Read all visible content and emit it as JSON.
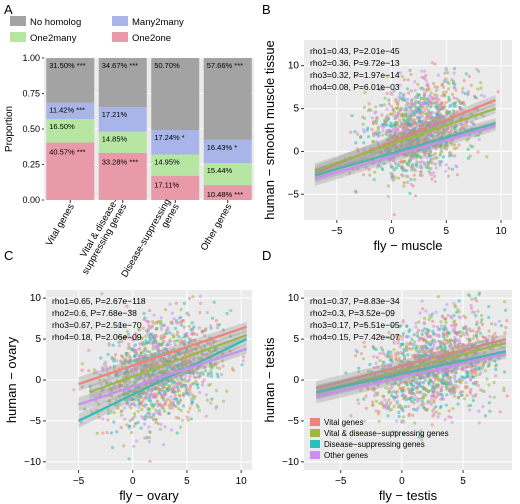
{
  "panel_letters": {
    "A": "A",
    "B": "B",
    "C": "C",
    "D": "D"
  },
  "colors": {
    "no_homolog": "#a3a3a3",
    "many2many": "#a9b4e8",
    "one2many": "#b6e6a2",
    "one2one": "#e89aa8",
    "vital": "#f0827a",
    "vital_disease": "#9db843",
    "disease": "#2bbfb5",
    "other": "#c98ff2",
    "panel_bg": "#ebebeb",
    "grid": "#ffffff"
  },
  "chart_data": [
    {
      "type": "bar",
      "panel": "A",
      "ylabel": "Proportion",
      "ylim": [
        0,
        1
      ],
      "yticks": [
        "0.00",
        "0.25",
        "0.50",
        "0.75",
        "1.00"
      ],
      "categories": [
        "Vital genes",
        "Vital & disease-\nsuppressing genes",
        "Disease-suppressing\ngenes",
        "Other genes"
      ],
      "legend": [
        "No homolog",
        "Many2many",
        "One2many",
        "One2one"
      ],
      "series": [
        {
          "name": "One2one",
          "values": [
            40.57,
            33.28,
            17.11,
            10.48
          ],
          "labels": [
            "40.57% ***",
            "33.28% ***",
            "17.11%",
            "10.48% ***"
          ]
        },
        {
          "name": "One2many",
          "values": [
            16.5,
            14.85,
            14.95,
            15.44
          ],
          "labels": [
            "16.50%",
            "14.85%",
            "14.95%",
            "15.44%"
          ]
        },
        {
          "name": "Many2many",
          "values": [
            11.42,
            17.21,
            17.24,
            16.43
          ],
          "labels": [
            "11.42% ***",
            "17.21%",
            "17.24% *",
            "16.43% *"
          ]
        },
        {
          "name": "No homolog",
          "values": [
            31.5,
            34.67,
            50.7,
            57.66
          ],
          "labels": [
            "31.50% ***",
            "34.67% ***",
            "50.70%",
            "57.66% ***"
          ]
        }
      ]
    },
    {
      "type": "scatter",
      "panel": "B",
      "xlabel": "fly − muscle",
      "ylabel": "human − smooth muscle tissue",
      "xlim": [
        -8,
        11
      ],
      "ylim": [
        -8,
        13
      ],
      "xticks": [
        -5,
        0,
        5,
        10
      ],
      "yticks": [
        -5,
        0,
        5,
        10
      ],
      "annotations": [
        "rho1=0.43, P=2.01e−45",
        "rho2=0.36, P=9.72e−13",
        "rho3=0.32, P=1.97e−14",
        "rho4=0.08, P=6.01e−03"
      ],
      "fits": [
        {
          "name": "Vital genes",
          "x": [
            -7,
            9.5
          ],
          "y": [
            -2.5,
            6.0
          ]
        },
        {
          "name": "Vital & disease-suppressing genes",
          "x": [
            -7,
            9.5
          ],
          "y": [
            -2.2,
            5.0
          ]
        },
        {
          "name": "Disease-suppressing genes",
          "x": [
            -7,
            9.5
          ],
          "y": [
            -2.8,
            3.3
          ]
        },
        {
          "name": "Other genes",
          "x": [
            -7,
            9.5
          ],
          "y": [
            -3.2,
            3.0
          ]
        }
      ]
    },
    {
      "type": "scatter",
      "panel": "C",
      "xlabel": "fly − ovary",
      "ylabel": "human − ovary",
      "xlim": [
        -8,
        11
      ],
      "ylim": [
        -11,
        11
      ],
      "xticks": [
        -5,
        0,
        5,
        10
      ],
      "yticks": [
        -10,
        -5,
        0,
        5,
        10
      ],
      "annotations": [
        "rho1=0.65, P=2.67e−118",
        "rho2=0.6, P=7.68e−38",
        "rho3=0.67, P=2.51e−70",
        "rho4=0.18, P=2.06e−09"
      ],
      "fits": [
        {
          "name": "Vital genes",
          "x": [
            -5,
            10.5
          ],
          "y": [
            -0.5,
            6.5
          ]
        },
        {
          "name": "Vital & disease-suppressing genes",
          "x": [
            -4,
            10.5
          ],
          "y": [
            -1.5,
            5.5
          ]
        },
        {
          "name": "Disease-suppressing genes",
          "x": [
            -5,
            10.5
          ],
          "y": [
            -5.0,
            5.0
          ]
        },
        {
          "name": "Other genes",
          "x": [
            -5,
            10.5
          ],
          "y": [
            -3.0,
            3.8
          ]
        }
      ]
    },
    {
      "type": "scatter",
      "panel": "D",
      "xlabel": "fly − testis",
      "ylabel": "human − testis",
      "xlim": [
        -8,
        9
      ],
      "ylim": [
        -11,
        11
      ],
      "xticks": [
        -5,
        0,
        5
      ],
      "yticks": [
        -10,
        -5,
        0,
        5,
        10
      ],
      "annotations": [
        "rho1=0.37, P=8.83e−34",
        "rho2=0.3, P=3.52e−09",
        "rho3=0.17, P=5.51e−05",
        "rho4=0.15, P=7.42e−07"
      ],
      "legend": [
        "Vital genes",
        "Vital & disease−suppressing genes",
        "Disease−suppressing genes",
        "Other genes"
      ],
      "fits": [
        {
          "name": "Vital genes",
          "x": [
            -7,
            8.5
          ],
          "y": [
            -1.0,
            5.0
          ]
        },
        {
          "name": "Vital & disease-suppressing genes",
          "x": [
            -7,
            8.5
          ],
          "y": [
            -1.5,
            4.5
          ]
        },
        {
          "name": "Disease-suppressing genes",
          "x": [
            -7,
            8.5
          ],
          "y": [
            -1.5,
            3.5
          ]
        },
        {
          "name": "Other genes",
          "x": [
            -7,
            8.5
          ],
          "y": [
            -2.0,
            3.2
          ]
        }
      ]
    }
  ]
}
